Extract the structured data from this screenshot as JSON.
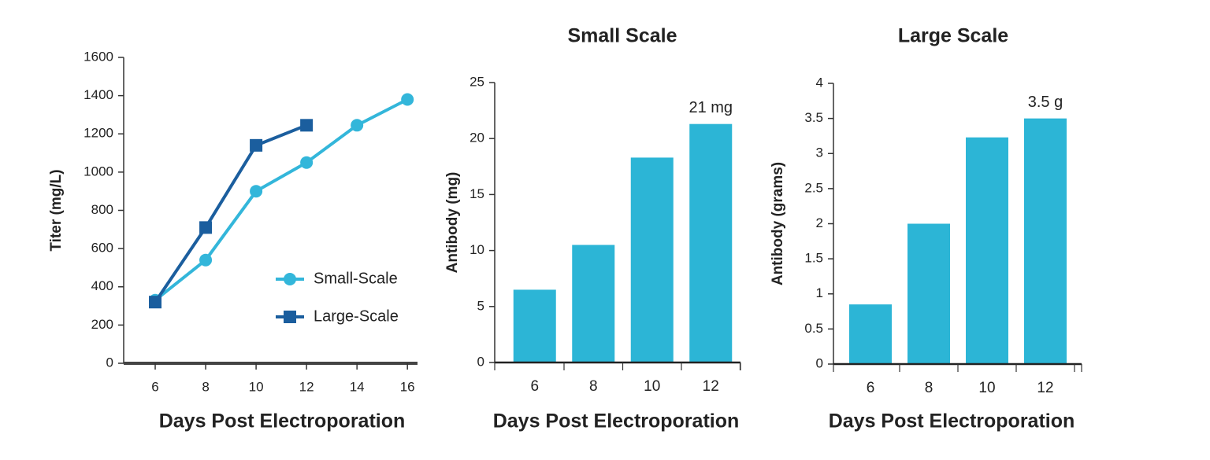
{
  "chart_data": [
    {
      "type": "line",
      "xlabel": "Days Post Electroporation",
      "ylabel": "Titer (mg/L)",
      "x": [
        6,
        8,
        10,
        12,
        14,
        16
      ],
      "series": [
        {
          "name": "Small-Scale",
          "color": "#33b6da",
          "marker": "circle",
          "values": [
            330,
            540,
            900,
            1050,
            1245,
            1380
          ]
        },
        {
          "name": "Large-Scale",
          "color": "#1b5e9e",
          "marker": "square",
          "values": [
            320,
            710,
            1140,
            1245,
            null,
            null
          ]
        }
      ],
      "xlim": [
        4.75,
        16.4
      ],
      "xticks": [
        6,
        8,
        10,
        12,
        14,
        16
      ],
      "ylim": [
        0,
        1600
      ],
      "yticks": [
        0,
        200,
        400,
        600,
        800,
        1000,
        1200,
        1400,
        1600
      ],
      "grid": false,
      "legend": "lower right"
    },
    {
      "type": "bar",
      "title": "Small Scale",
      "xlabel": "Days Post Electroporation",
      "ylabel": "Antibody (mg)",
      "categories": [
        "6",
        "8",
        "10",
        "12"
      ],
      "values": [
        6.5,
        10.5,
        18.3,
        21.3
      ],
      "value_labels": [
        null,
        null,
        null,
        "21 mg"
      ],
      "color": "#2cb5d6",
      "ylim": [
        0,
        25
      ],
      "yticks": [
        0,
        5,
        10,
        15,
        20,
        25
      ],
      "grid": false
    },
    {
      "type": "bar",
      "title": "Large Scale",
      "xlabel": "Days Post Electroporation",
      "ylabel": "Antibody (grams)",
      "categories": [
        "6",
        "8",
        "10",
        "12"
      ],
      "values": [
        0.85,
        2.0,
        3.23,
        3.5
      ],
      "value_labels": [
        null,
        null,
        null,
        "3.5 g"
      ],
      "color": "#2cb5d6",
      "ylim": [
        0,
        4
      ],
      "yticks": [
        0,
        0.5,
        1,
        1.5,
        2,
        2.5,
        3,
        3.5,
        4
      ],
      "grid": false
    }
  ]
}
